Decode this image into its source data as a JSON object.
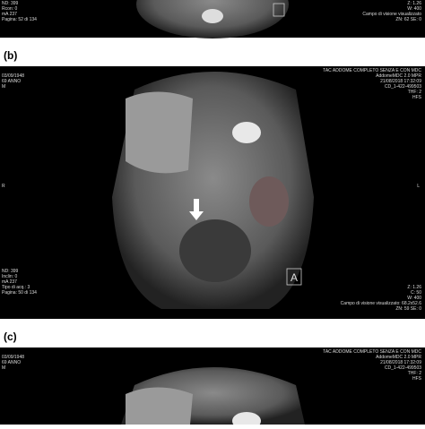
{
  "panels": [
    {
      "left_text": [
        "ND: 399",
        "Rcon: 0",
        "mA 237",
        "Pagina: 52 di 134"
      ],
      "right_text": [
        "Z: 1.26",
        "W: 400",
        "Campo di visione visualizzato",
        "ZN: 62 SE: 0"
      ]
    },
    {
      "label": "(b)",
      "left_text": [
        "03/09/1948",
        "69 ANNO",
        "M"
      ],
      "left_bottom_text": [
        "ND: 399",
        "Inclin: 0",
        "mA 237",
        "Tipo di acq.: 3",
        "Pagina: 50 di 134"
      ],
      "right_text": [
        "TAC ADDOME COMPLETO SENZA E CON MDC",
        "AddomeMDC 2.0 MPR",
        "21/08/2018 17:32:09",
        "CD_1-422-499503",
        "THF: 2",
        "HFS"
      ],
      "right_bottom_text": [
        "Z: 1.26",
        "C: 50",
        "W: 400",
        "Campo di visione visualizzato: 68.2x52.6",
        "ZN: 59 SE: 0"
      ],
      "side_left": "R",
      "side_right": "L",
      "orientation": "A"
    },
    {
      "label": "(c)",
      "left_text": [
        "03/09/1948",
        "69 ANNO",
        "M"
      ],
      "right_text": [
        "TAC ADDOME COMPLETO SENZA E CON MDC",
        "AddomeMDC 2.0 MPR",
        "21/08/2018 17:32:09",
        "CD_1-422-499503",
        "THF: 2",
        "HFS"
      ]
    }
  ]
}
